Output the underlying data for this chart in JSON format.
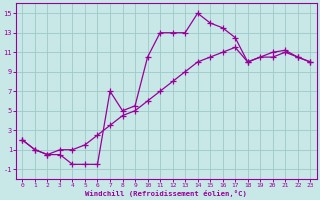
{
  "bg_color": "#c8e8e8",
  "grid_color": "#a0c8c8",
  "line_color": "#990099",
  "marker": "+",
  "line1_x": [
    0,
    1,
    2,
    3,
    4,
    5,
    6,
    7,
    8,
    9,
    10,
    11,
    12,
    13,
    14,
    15,
    16,
    17,
    18,
    20,
    21,
    22,
    23
  ],
  "line1_y": [
    2,
    1,
    0.5,
    0.5,
    -0.5,
    -0.5,
    -0.5,
    7,
    5,
    5.5,
    10.5,
    13,
    13,
    13,
    15,
    14,
    13.5,
    12.5,
    10,
    11,
    11.2,
    10.5,
    10
  ],
  "line2_x": [
    0,
    1,
    2,
    3,
    4,
    5,
    6,
    7,
    8,
    9,
    10,
    11,
    12,
    13,
    14,
    15,
    16,
    17,
    18,
    19,
    20,
    21,
    22,
    23
  ],
  "line2_y": [
    2,
    1,
    0.5,
    1,
    1.0,
    1.5,
    2.5,
    3.5,
    4.5,
    5,
    6,
    7,
    8,
    9,
    10,
    10.5,
    11,
    11.5,
    10,
    10.5,
    10.5,
    11,
    10.5,
    10
  ],
  "xlim": [
    -0.5,
    23.5
  ],
  "ylim": [
    -2,
    16
  ],
  "xticks": [
    0,
    1,
    2,
    3,
    4,
    5,
    6,
    7,
    8,
    9,
    10,
    11,
    12,
    13,
    14,
    15,
    16,
    17,
    18,
    19,
    20,
    21,
    22,
    23
  ],
  "yticks": [
    -1,
    1,
    3,
    5,
    7,
    9,
    11,
    13,
    15
  ],
  "xlabel": "Windchill (Refroidissement éolien,°C)"
}
